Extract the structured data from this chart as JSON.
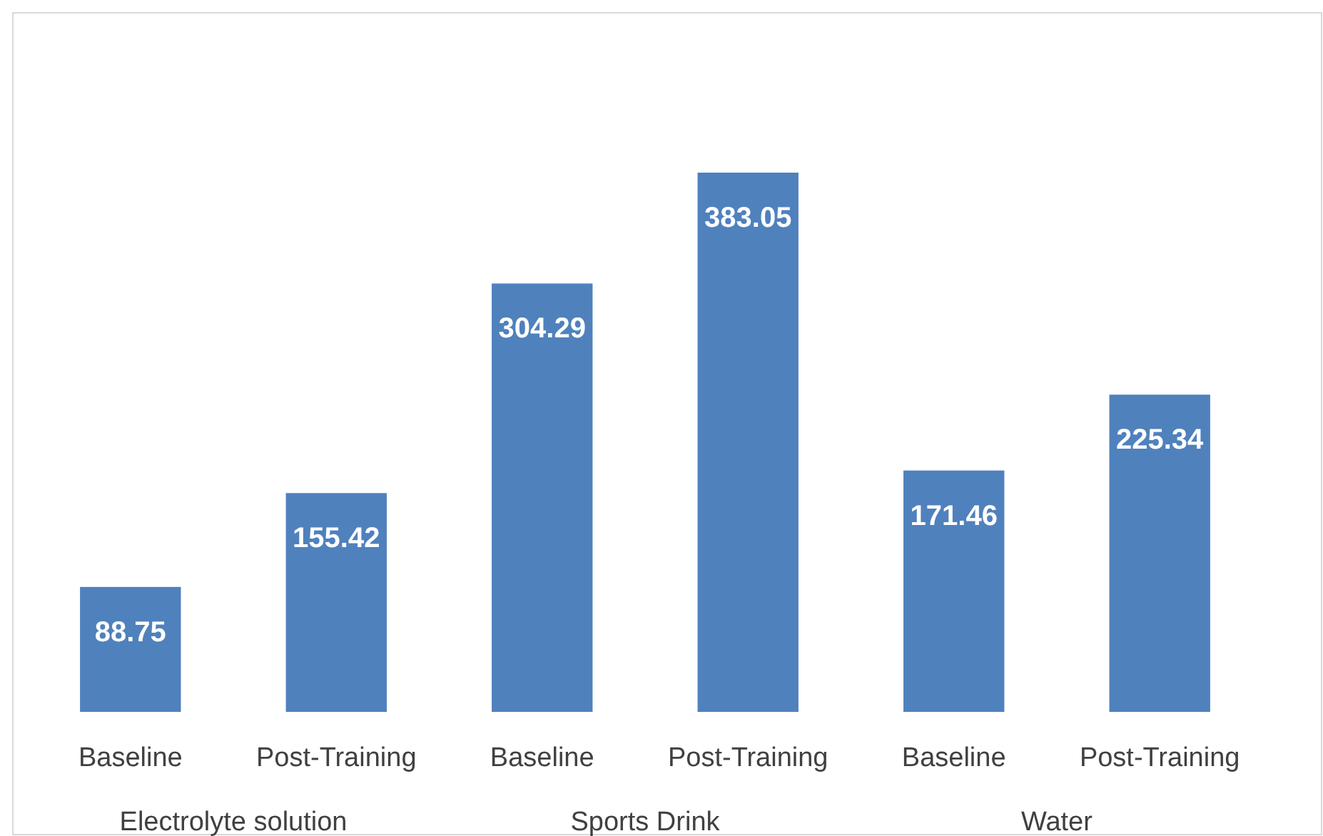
{
  "chart_data": {
    "type": "bar",
    "categories": [
      "Baseline",
      "Post-Training",
      "Baseline",
      "Post-Training",
      "Baseline",
      "Post-Training"
    ],
    "values": [
      88.75,
      155.42,
      304.29,
      383.05,
      171.46,
      225.34
    ],
    "color": "#4f81bd",
    "data_labels": true,
    "annotations": [
      "Electrolyte solution",
      "Sports Drink",
      "Water"
    ]
  }
}
